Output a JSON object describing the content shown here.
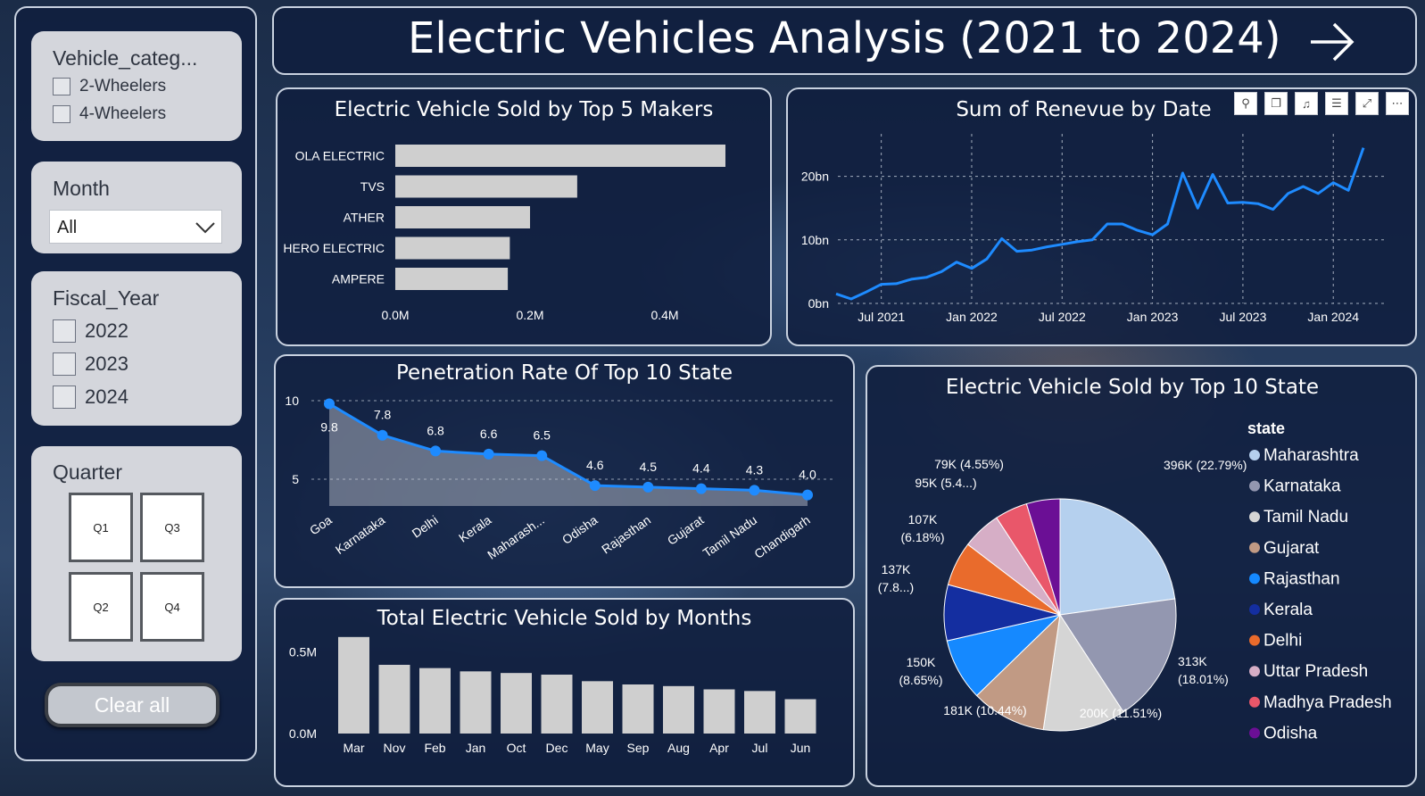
{
  "header": {
    "title": "Electric Vehicles Analysis (2021 to 2024)",
    "next_icon": "arrow-right-icon"
  },
  "filters": {
    "vehicle_category": {
      "title": "Vehicle_categ...",
      "options": [
        "2-Wheelers",
        "4-Wheelers"
      ]
    },
    "month": {
      "title": "Month",
      "value": "All"
    },
    "fiscal_year": {
      "title": "Fiscal_Year",
      "options": [
        "2022",
        "2023",
        "2024"
      ]
    },
    "quarter": {
      "title": "Quarter",
      "tiles": [
        "Q1",
        "Q3",
        "Q2",
        "Q4"
      ]
    },
    "clear_label": "Clear all"
  },
  "toolbar_icons": [
    "pin-icon",
    "copy-icon",
    "bell-icon",
    "filter-icon",
    "focus-mode-icon",
    "more-options-icon"
  ],
  "chart_data": [
    {
      "id": "makers",
      "type": "bar",
      "orientation": "horizontal",
      "title": "Electric Vehicle Sold by Top 5 Makers",
      "categories": [
        "OLA ELECTRIC",
        "TVS",
        "ATHER",
        "HERO ELECTRIC",
        "AMPERE"
      ],
      "values": [
        0.49,
        0.27,
        0.2,
        0.17,
        0.167
      ],
      "xlim": [
        0,
        0.49
      ],
      "ticks": [
        {
          "value": 0,
          "label": "0.0M"
        },
        {
          "value": 0.2,
          "label": "0.2M"
        },
        {
          "value": 0.4,
          "label": "0.4M"
        }
      ],
      "color": "#cfcfcf"
    },
    {
      "id": "revenue",
      "type": "line",
      "title": "Sum of Renevue by Date",
      "x": [
        "2021-04",
        "2021-05",
        "2021-06",
        "2021-07",
        "2021-08",
        "2021-09",
        "2021-10",
        "2021-11",
        "2021-12",
        "2022-01",
        "2022-02",
        "2022-03",
        "2022-04",
        "2022-05",
        "2022-06",
        "2022-07",
        "2022-08",
        "2022-09",
        "2022-10",
        "2022-11",
        "2022-12",
        "2023-01",
        "2023-02",
        "2023-03",
        "2023-04",
        "2023-05",
        "2023-06",
        "2023-07",
        "2023-08",
        "2023-09",
        "2023-10",
        "2023-11",
        "2023-12",
        "2024-01",
        "2024-02",
        "2024-03"
      ],
      "values": [
        1.5,
        0.7,
        1.8,
        3.0,
        3.1,
        3.8,
        4.1,
        5.0,
        6.5,
        5.5,
        7.0,
        10.2,
        8.2,
        8.4,
        8.9,
        9.3,
        9.7,
        10.0,
        12.5,
        12.5,
        11.5,
        10.8,
        12.5,
        20.5,
        15.0,
        20.3,
        15.8,
        15.9,
        15.7,
        14.8,
        17.3,
        18.4,
        17.3,
        19.0,
        17.8,
        24.5
      ],
      "ylim": [
        0,
        25
      ],
      "yticks": [
        {
          "value": 0,
          "label": "0bn"
        },
        {
          "value": 10,
          "label": "10bn"
        },
        {
          "value": 20,
          "label": "20bn"
        }
      ],
      "xticks": [
        {
          "x": "2021-07",
          "label": "Jul 2021"
        },
        {
          "x": "2022-01",
          "label": "Jan 2022"
        },
        {
          "x": "2022-07",
          "label": "Jul 2022"
        },
        {
          "x": "2023-01",
          "label": "Jan 2023"
        },
        {
          "x": "2023-07",
          "label": "Jul 2023"
        },
        {
          "x": "2024-01",
          "label": "Jan 2024"
        }
      ],
      "color": "#1e8bff",
      "grid": true
    },
    {
      "id": "penetration",
      "type": "area",
      "title": "Penetration Rate Of Top 10 State",
      "categories": [
        "Goa",
        "Karnataka",
        "Delhi",
        "Kerala",
        "Maharash...",
        "Odisha",
        "Rajasthan",
        "Gujarat",
        "Tamil Nadu",
        "Chandigarh"
      ],
      "values": [
        9.8,
        7.8,
        6.8,
        6.6,
        6.5,
        4.6,
        4.5,
        4.4,
        4.3,
        4.0
      ],
      "data_labels": [
        "9.8",
        "7.8",
        "6.8",
        "6.6",
        "6.5",
        "4.6",
        "4.5",
        "4.4",
        "4.3",
        "4.0"
      ],
      "ylim": [
        3.3,
        10.0
      ],
      "yticks": [
        {
          "value": 10,
          "label": "10"
        },
        {
          "value": 5,
          "label": "5"
        }
      ],
      "color": "#1e8bff",
      "grid": true
    },
    {
      "id": "monthly",
      "type": "bar",
      "title": "Total Electric Vehicle Sold by Months",
      "categories": [
        "Mar",
        "Nov",
        "Feb",
        "Jan",
        "Oct",
        "Dec",
        "May",
        "Sep",
        "Aug",
        "Apr",
        "Jul",
        "Jun"
      ],
      "values": [
        0.59,
        0.42,
        0.4,
        0.38,
        0.37,
        0.36,
        0.32,
        0.3,
        0.29,
        0.27,
        0.26,
        0.21
      ],
      "ylim": [
        0,
        0.6
      ],
      "yticks": [
        {
          "value": 0,
          "label": "0.0M"
        },
        {
          "value": 0.5,
          "label": "0.5M"
        }
      ],
      "color": "#cfcfcf"
    },
    {
      "id": "states",
      "type": "pie",
      "title": "Electric Vehicle Sold by Top 10 State",
      "legend_title": "state",
      "legend_position": "right",
      "slices": [
        {
          "name": "Maharashtra",
          "value": 22.79,
          "label": "396K (22.79%)",
          "color": "#b5d0ee"
        },
        {
          "name": "Karnataka",
          "value": 18.01,
          "label": "313K (18.01%)",
          "color": "#9397b0"
        },
        {
          "name": "Tamil Nadu",
          "value": 11.51,
          "label": "200K (11.51%)",
          "color": "#d5d5d5"
        },
        {
          "name": "Gujarat",
          "value": 10.44,
          "label": "181K (10.44%)",
          "color": "#c19a84"
        },
        {
          "name": "Rajasthan",
          "value": 8.65,
          "label": "150K (8.65%)",
          "color": "#1589ff"
        },
        {
          "name": "Kerala",
          "value": 7.8,
          "label": "137K (7.8...)",
          "color": "#142ea0"
        },
        {
          "name": "Delhi",
          "value": 6.18,
          "label": "107K (6.18%)",
          "color": "#e96b2c"
        },
        {
          "name": "Uttar Pradesh",
          "value": 5.4,
          "label": "95K (5.4...)",
          "color": "#d6aec6"
        },
        {
          "name": "Madhya Pradesh",
          "value": 4.55,
          "label": "79K (4.55%)",
          "color": "#e9576a"
        },
        {
          "name": "Odisha",
          "value": 4.67,
          "label": "",
          "color": "#6b0f95"
        }
      ]
    }
  ]
}
